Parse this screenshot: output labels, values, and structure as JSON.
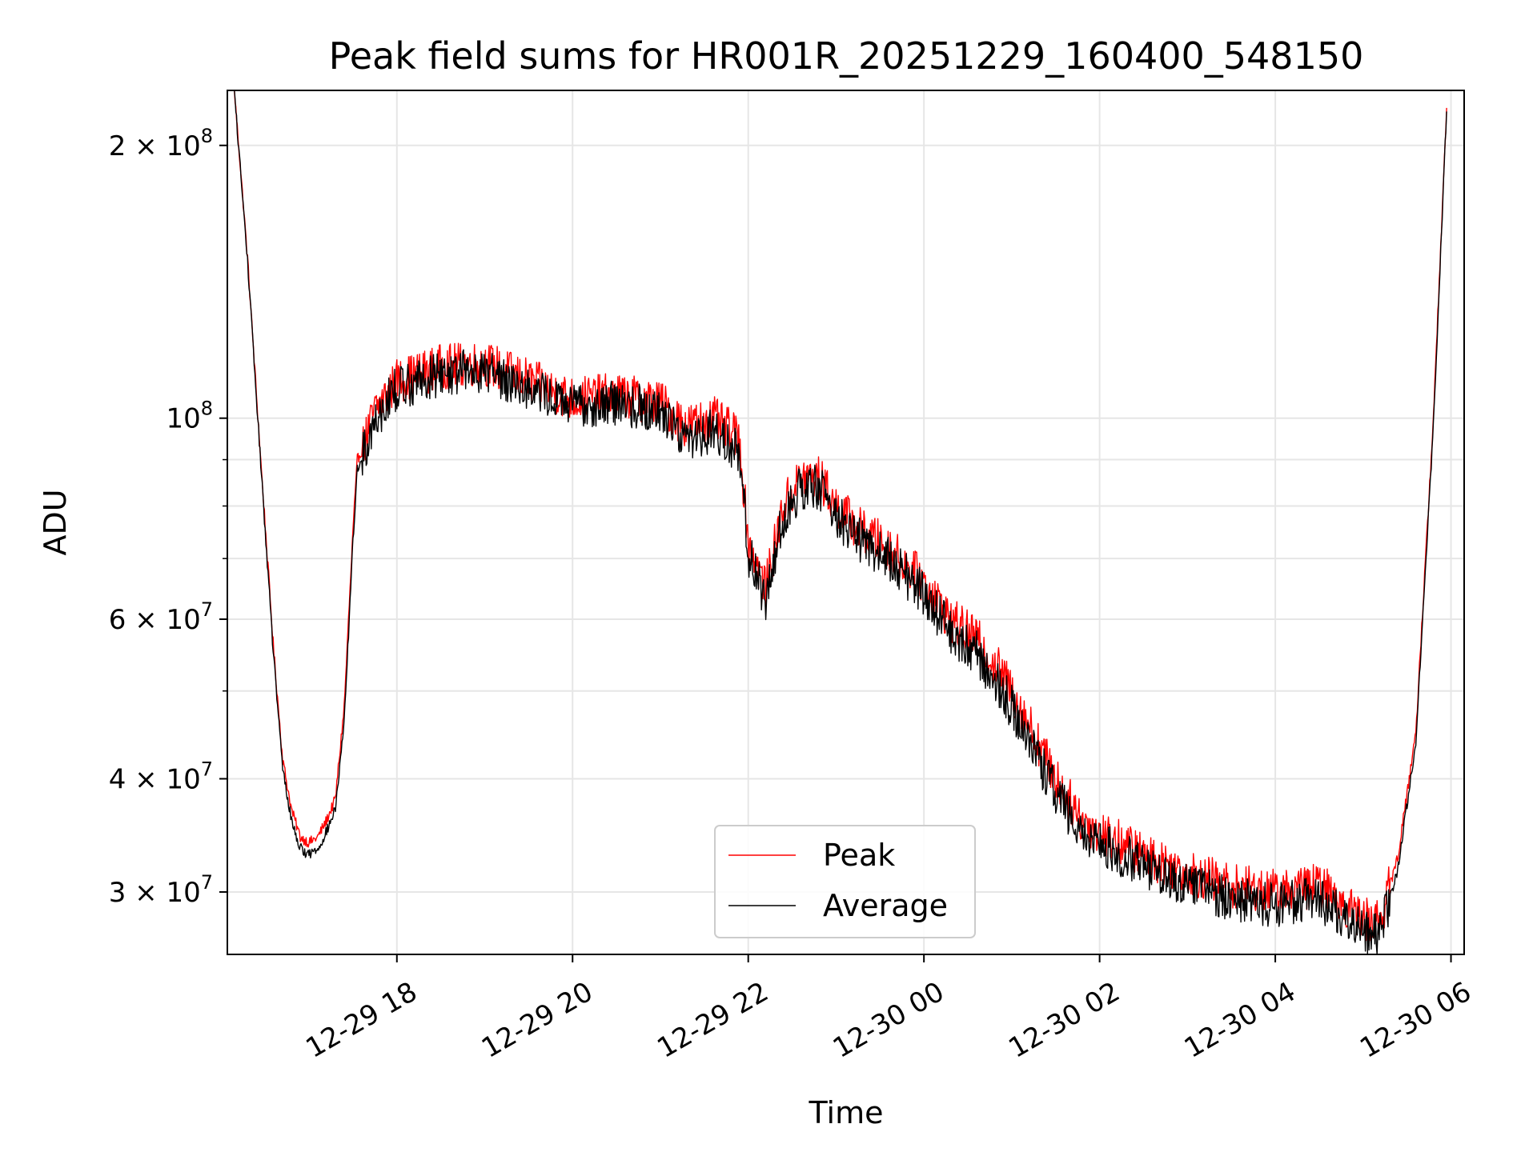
{
  "chart_data": {
    "type": "line",
    "title": "Peak field sums for HR001R_20251229_160400_548150",
    "xlabel": "Time",
    "ylabel": "ADU",
    "y_scale": "log",
    "grid": true,
    "legend_position": "bottom-center",
    "x_hours_range": [
      16.07,
      30.15
    ],
    "ylim": [
      25600000,
      230000000
    ],
    "x_ticks": [
      {
        "hours": 18,
        "label": "12-29 18"
      },
      {
        "hours": 20,
        "label": "12-29 20"
      },
      {
        "hours": 22,
        "label": "12-29 22"
      },
      {
        "hours": 24,
        "label": "12-30 00"
      },
      {
        "hours": 26,
        "label": "12-30 02"
      },
      {
        "hours": 28,
        "label": "12-30 04"
      },
      {
        "hours": 30,
        "label": "12-30 06"
      }
    ],
    "y_major_ticks": [
      {
        "value": 30000000,
        "mantissa": "3 × 10",
        "exponent": "7"
      },
      {
        "value": 40000000,
        "mantissa": "4 × 10",
        "exponent": "7"
      },
      {
        "value": 60000000,
        "mantissa": "6 × 10",
        "exponent": "7"
      },
      {
        "value": 100000000,
        "mantissa": "10",
        "exponent": "8"
      },
      {
        "value": 200000000,
        "mantissa": "2 × 10",
        "exponent": "8"
      }
    ],
    "y_minor_ticks": [
      50000000,
      70000000,
      80000000,
      90000000
    ],
    "series": [
      {
        "name": "Peak",
        "color": "#ff0000",
        "x_hours": [
          16.15,
          16.3,
          16.45,
          16.6,
          16.7,
          16.8,
          16.9,
          17.0,
          17.1,
          17.2,
          17.3,
          17.4,
          17.5,
          17.55,
          17.6,
          17.75,
          18.0,
          18.5,
          19.0,
          19.5,
          20.0,
          20.5,
          21.0,
          21.3,
          21.6,
          21.9,
          22.0,
          22.2,
          22.4,
          22.6,
          22.8,
          23.0,
          23.3,
          23.6,
          24.0,
          24.3,
          24.6,
          24.9,
          25.2,
          25.5,
          25.8,
          26.0,
          26.5,
          27.0,
          27.5,
          28.0,
          28.5,
          28.8,
          29.0,
          29.2,
          29.4,
          29.6,
          29.8,
          29.95
        ],
        "values": [
          230000000,
          150000000,
          90000000,
          55000000,
          42000000,
          37000000,
          34500000,
          34000000,
          34500000,
          36000000,
          38000000,
          48000000,
          75000000,
          90000000,
          92000000,
          102000000,
          110000000,
          114000000,
          115000000,
          110000000,
          105000000,
          106000000,
          104000000,
          98000000,
          100000000,
          95000000,
          73000000,
          65000000,
          80000000,
          86000000,
          86000000,
          80000000,
          75000000,
          72000000,
          66000000,
          60000000,
          57000000,
          52000000,
          46000000,
          40000000,
          36000000,
          35000000,
          33000000,
          31500000,
          30500000,
          30000000,
          30500000,
          29000000,
          28000000,
          28000000,
          33000000,
          45000000,
          100000000,
          220000000
        ]
      },
      {
        "name": "Average",
        "color": "#000000",
        "x_hours": [
          16.15,
          16.3,
          16.45,
          16.6,
          16.7,
          16.8,
          16.9,
          17.0,
          17.1,
          17.2,
          17.3,
          17.4,
          17.5,
          17.55,
          17.6,
          17.75,
          18.0,
          18.5,
          19.0,
          19.5,
          20.0,
          20.5,
          21.0,
          21.3,
          21.6,
          21.9,
          22.0,
          22.2,
          22.4,
          22.6,
          22.8,
          23.0,
          23.3,
          23.6,
          24.0,
          24.3,
          24.6,
          24.9,
          25.2,
          25.5,
          25.8,
          26.0,
          26.5,
          27.0,
          27.5,
          28.0,
          28.5,
          28.8,
          29.0,
          29.2,
          29.4,
          29.6,
          29.8,
          29.95
        ],
        "values": [
          229000000,
          149000000,
          89000000,
          54000000,
          41000000,
          36000000,
          33500000,
          33000000,
          33500000,
          35000000,
          37000000,
          46000000,
          73000000,
          88000000,
          90000000,
          100000000,
          108000000,
          112000000,
          113000000,
          108000000,
          103000000,
          104000000,
          102000000,
          95000000,
          97000000,
          92000000,
          71000000,
          63000000,
          78000000,
          84000000,
          84000000,
          78000000,
          73000000,
          70000000,
          64000000,
          58000000,
          55000000,
          50000000,
          44000000,
          38500000,
          35000000,
          34000000,
          32000000,
          30500000,
          29500000,
          29000000,
          29500000,
          28000000,
          27000000,
          27000000,
          32000000,
          44000000,
          98000000,
          218000000
        ]
      }
    ]
  }
}
